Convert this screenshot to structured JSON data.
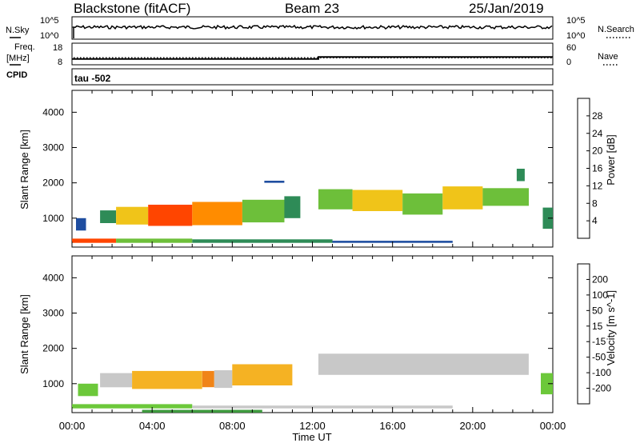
{
  "header": {
    "station": "Blackstone (fitACF)",
    "beam": "Beam 23",
    "date": "25/Jan/2019"
  },
  "top_panel": {
    "nsky_label": "N.Sky",
    "nsearch_label": "N.Search",
    "left_ticks": [
      "10^5",
      "10^0"
    ],
    "right_ticks": [
      "10^5",
      "10^0"
    ]
  },
  "freq_panel": {
    "freq_label_1": "Freq.",
    "freq_label_2": "[MHz]",
    "nave_label": "Nave",
    "cpid_label": "CPID",
    "left_ticks": [
      "18",
      "8"
    ],
    "right_ticks": [
      "60",
      "0"
    ],
    "freq_series_mhz": [
      [
        0,
        10.4
      ],
      [
        12.3,
        10.4
      ],
      [
        12.3,
        11.4
      ],
      [
        24,
        11.4
      ]
    ],
    "nave_level": 18
  },
  "tau_label": "tau -502",
  "colors": {
    "power": [
      "#1a1aff",
      "#1f4ea0",
      "#2e8b57",
      "#6dbf3a",
      "#f0c419",
      "#ff8c00",
      "#ff4500",
      "#ee0000"
    ],
    "velocity": [
      "#1f3ca6",
      "#2e6b3a",
      "#3f9a3f",
      "#6cc83a",
      "#c8c8c8",
      "#f5b223",
      "#f08418",
      "#ee4a14",
      "#e00000"
    ]
  },
  "chart_data": [
    {
      "type": "heatmap",
      "title": "",
      "xlabel": "Time UT",
      "ylabel": "Slant Range [km]",
      "x_ticks": [
        "00:00",
        "04:00",
        "08:00",
        "12:00",
        "16:00",
        "20:00",
        "00:00"
      ],
      "y_ticks": [
        "1000",
        "2000",
        "3000",
        "4000"
      ],
      "xlim_hours": [
        0,
        24
      ],
      "ylim_km": [
        180,
        4620
      ],
      "colorbar": {
        "label": "Power [dB]",
        "ticks": [
          "28",
          "24",
          "20",
          "16",
          "12",
          "8",
          "4"
        ],
        "range_db": [
          0,
          32
        ]
      },
      "echo_bands": [
        {
          "x_start_hours": 1.4,
          "x_end_hours": 2.2,
          "bottom_km": 860,
          "top_km": 1220,
          "level_db": 9
        },
        {
          "x_start_hours": 2.2,
          "x_end_hours": 3.8,
          "bottom_km": 820,
          "top_km": 1320,
          "level_db": 16
        },
        {
          "x_start_hours": 3.8,
          "x_end_hours": 6.0,
          "bottom_km": 780,
          "top_km": 1380,
          "level_db": 24
        },
        {
          "x_start_hours": 6.0,
          "x_end_hours": 8.5,
          "bottom_km": 800,
          "top_km": 1460,
          "level_db": 21
        },
        {
          "x_start_hours": 8.5,
          "x_end_hours": 10.6,
          "bottom_km": 880,
          "top_km": 1520,
          "level_db": 12
        },
        {
          "x_start_hours": 10.6,
          "x_end_hours": 11.4,
          "bottom_km": 1000,
          "top_km": 1620,
          "level_db": 8
        },
        {
          "x_start_hours": 12.3,
          "x_end_hours": 14.0,
          "bottom_km": 1250,
          "top_km": 1820,
          "level_db": 14
        },
        {
          "x_start_hours": 14.0,
          "x_end_hours": 16.5,
          "bottom_km": 1200,
          "top_km": 1800,
          "level_db": 18
        },
        {
          "x_start_hours": 16.5,
          "x_end_hours": 18.5,
          "bottom_km": 1100,
          "top_km": 1700,
          "level_db": 15
        },
        {
          "x_start_hours": 18.5,
          "x_end_hours": 20.5,
          "bottom_km": 1250,
          "top_km": 1900,
          "level_db": 17
        },
        {
          "x_start_hours": 20.5,
          "x_end_hours": 22.8,
          "bottom_km": 1350,
          "top_km": 1850,
          "level_db": 12
        },
        {
          "x_start_hours": 23.5,
          "x_end_hours": 24.0,
          "bottom_km": 700,
          "top_km": 1300,
          "level_db": 10
        },
        {
          "x_start_hours": 0.2,
          "x_end_hours": 0.7,
          "bottom_km": 650,
          "top_km": 1000,
          "level_db": 7
        },
        {
          "x_start_hours": 0.0,
          "x_end_hours": 2.2,
          "bottom_km": 300,
          "top_km": 420,
          "level_db": 24
        },
        {
          "x_start_hours": 2.2,
          "x_end_hours": 6.0,
          "bottom_km": 300,
          "top_km": 420,
          "level_db": 14
        },
        {
          "x_start_hours": 6.0,
          "x_end_hours": 13.0,
          "bottom_km": 300,
          "top_km": 400,
          "level_db": 10
        },
        {
          "x_start_hours": 13.0,
          "x_end_hours": 19.0,
          "bottom_km": 300,
          "top_km": 360,
          "level_db": 6
        },
        {
          "x_start_hours": 9.6,
          "x_end_hours": 10.6,
          "bottom_km": 2000,
          "top_km": 2060,
          "level_db": 5
        },
        {
          "x_start_hours": 22.2,
          "x_end_hours": 22.6,
          "bottom_km": 2050,
          "top_km": 2400,
          "level_db": 8
        }
      ]
    },
    {
      "type": "heatmap",
      "title": "",
      "xlabel": "Time UT",
      "ylabel": "Slant Range [km]",
      "x_ticks": [
        "00:00",
        "04:00",
        "08:00",
        "12:00",
        "16:00",
        "20:00",
        "00:00"
      ],
      "y_ticks": [
        "1000",
        "2000",
        "3000",
        "4000"
      ],
      "xlim_hours": [
        0,
        24
      ],
      "ylim_km": [
        180,
        4620
      ],
      "colorbar": {
        "label": "Velocity [m s^-1]",
        "ticks": [
          "200",
          "100",
          "50",
          "15",
          "-15",
          "-50",
          "-100",
          "-200"
        ]
      },
      "echo_bands": [
        {
          "x_start_hours": 1.4,
          "x_end_hours": 3.0,
          "bottom_km": 900,
          "top_km": 1300,
          "velocity_bin": 4
        },
        {
          "x_start_hours": 3.0,
          "x_end_hours": 6.5,
          "bottom_km": 850,
          "top_km": 1360,
          "velocity_bin": 5
        },
        {
          "x_start_hours": 6.5,
          "x_end_hours": 7.1,
          "bottom_km": 900,
          "top_km": 1360,
          "velocity_bin": 6
        },
        {
          "x_start_hours": 7.1,
          "x_end_hours": 8.0,
          "bottom_km": 880,
          "top_km": 1380,
          "velocity_bin": 4
        },
        {
          "x_start_hours": 8.0,
          "x_end_hours": 11.0,
          "bottom_km": 950,
          "top_km": 1550,
          "velocity_bin": 5
        },
        {
          "x_start_hours": 12.3,
          "x_end_hours": 22.8,
          "bottom_km": 1250,
          "top_km": 1850,
          "velocity_bin": 4
        },
        {
          "x_start_hours": 23.4,
          "x_end_hours": 24.0,
          "bottom_km": 700,
          "top_km": 1300,
          "velocity_bin": 3
        },
        {
          "x_start_hours": 0.3,
          "x_end_hours": 1.3,
          "bottom_km": 650,
          "top_km": 1000,
          "velocity_bin": 3
        },
        {
          "x_start_hours": 0.0,
          "x_end_hours": 6.0,
          "bottom_km": 300,
          "top_km": 420,
          "velocity_bin": 3
        },
        {
          "x_start_hours": 6.0,
          "x_end_hours": 19.0,
          "bottom_km": 300,
          "top_km": 380,
          "velocity_bin": 4
        },
        {
          "x_start_hours": 3.5,
          "x_end_hours": 9.5,
          "bottom_km": 180,
          "top_km": 260,
          "velocity_bin": 2
        }
      ]
    }
  ]
}
